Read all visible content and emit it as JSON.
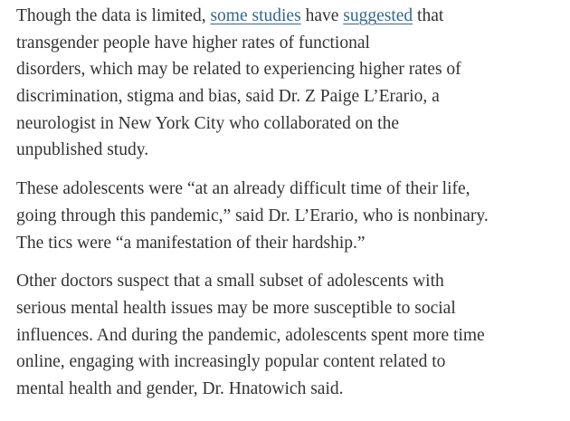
{
  "paragraphs": [
    {
      "lines": [
        [
          {
            "text": "Though the data is limited, "
          },
          {
            "link": "some studies"
          },
          {
            "text": " have "
          },
          {
            "link": "suggested"
          },
          {
            "text": " that"
          }
        ],
        [
          {
            "text": "transgender people have higher rates of functional"
          }
        ],
        [
          {
            "text": "disorders, which may be related to experiencing higher rates of"
          }
        ],
        [
          {
            "text": "discrimination, stigma and bias, said Dr. Z Paige L’Erario, a"
          }
        ],
        [
          {
            "text": "neurologist in New York City who collaborated on the"
          }
        ],
        [
          {
            "text": "unpublished study."
          }
        ]
      ]
    },
    {
      "lines": [
        [
          {
            "text": "These adolescents were “at an already difficult time of their life,"
          }
        ],
        [
          {
            "text": "going through this pandemic,” said Dr. L’Erario, who is nonbinary."
          }
        ],
        [
          {
            "text": "The tics were “a manifestation of their hardship.”"
          }
        ]
      ]
    },
    {
      "lines": [
        [
          {
            "text": "Other doctors suspect that a small subset of adolescents with"
          }
        ],
        [
          {
            "text": "serious mental health issues may be more susceptible to social"
          }
        ],
        [
          {
            "text": "influences. And during the pandemic, adolescents spent more time"
          }
        ],
        [
          {
            "text": "online, engaging with increasingly popular content related to"
          }
        ],
        [
          {
            "text": "mental health and gender, Dr. Hnatowich said."
          }
        ]
      ]
    }
  ]
}
